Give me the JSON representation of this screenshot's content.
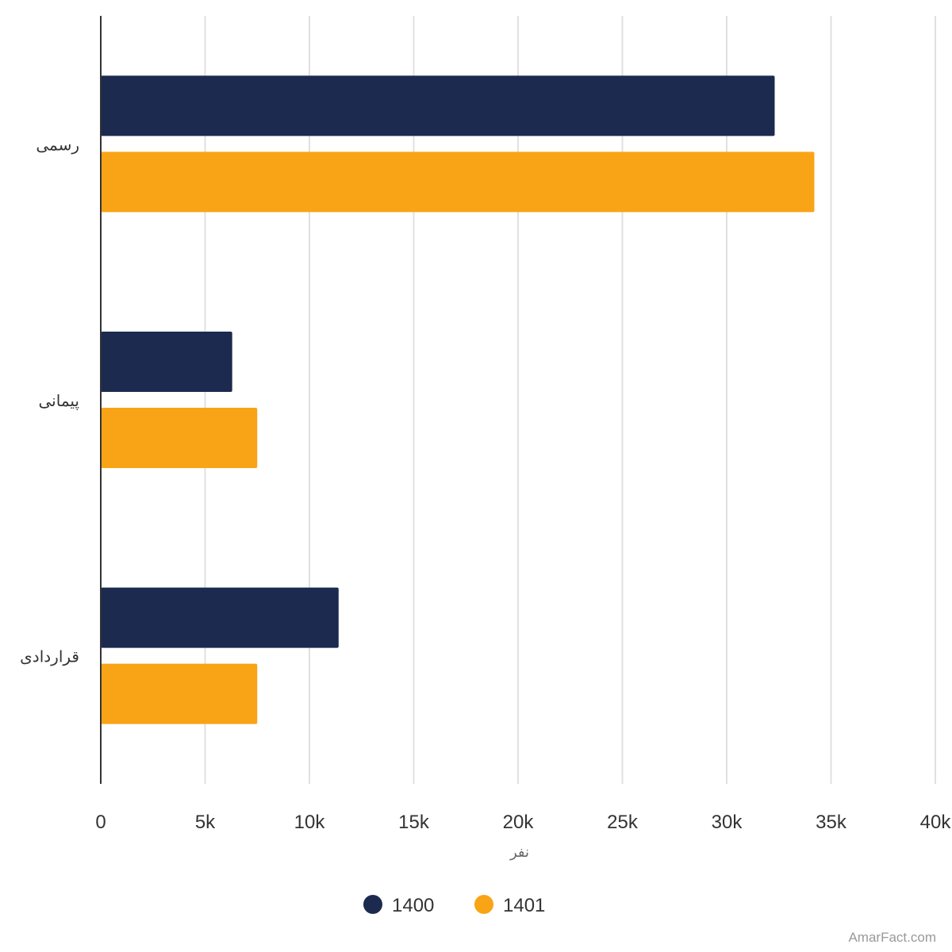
{
  "chart_data": {
    "type": "bar",
    "orientation": "horizontal",
    "categories": [
      "رسمی",
      "پیمانی",
      "قراردادی"
    ],
    "series": [
      {
        "name": "1400",
        "color": "#1b2a4e",
        "values": [
          32300,
          6300,
          11400
        ]
      },
      {
        "name": "1401",
        "color": "#f9a416",
        "values": [
          34200,
          7500,
          7500
        ]
      }
    ],
    "xlabel": "نفر",
    "ylabel": "",
    "xlim": [
      0,
      40000
    ],
    "xticks": [
      "0",
      "5k",
      "10k",
      "15k",
      "20k",
      "25k",
      "30k",
      "35k",
      "40k"
    ],
    "grid": true,
    "legend_position": "bottom"
  },
  "credit": "AmarFact.com"
}
